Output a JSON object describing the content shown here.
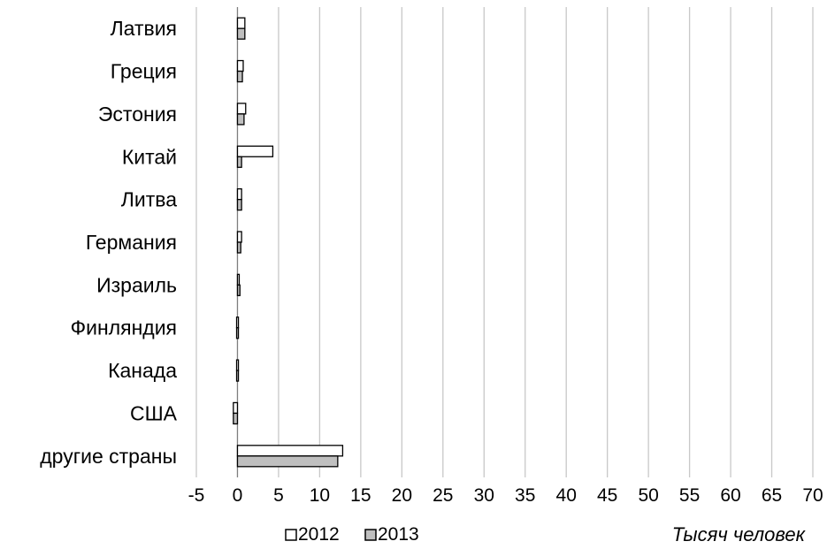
{
  "chart_data": {
    "type": "bar",
    "orientation": "horizontal",
    "categories": [
      "Латвия",
      "Греция",
      "Эстония",
      "Китай",
      "Литва",
      "Германия",
      "Израиль",
      "Финляндия",
      "Канада",
      "США",
      "другие страны"
    ],
    "series": [
      {
        "name": "2012",
        "color": "#ffffff",
        "values": [
          0.9,
          0.7,
          1.0,
          4.3,
          0.5,
          0.5,
          0.2,
          -0.1,
          -0.1,
          -0.5,
          12.8
        ]
      },
      {
        "name": "2013",
        "color": "#bfbfbf",
        "values": [
          0.9,
          0.6,
          0.8,
          0.5,
          0.5,
          0.4,
          0.3,
          -0.1,
          -0.1,
          -0.5,
          12.2
        ]
      }
    ],
    "xlim": [
      -5,
      70
    ],
    "x_ticks": [
      -5,
      0,
      5,
      10,
      15,
      20,
      25,
      30,
      35,
      40,
      45,
      50,
      55,
      60,
      65,
      70
    ],
    "xlabel": "Тысяч человек",
    "grid": "vertical",
    "legend_position": "bottom-left"
  }
}
